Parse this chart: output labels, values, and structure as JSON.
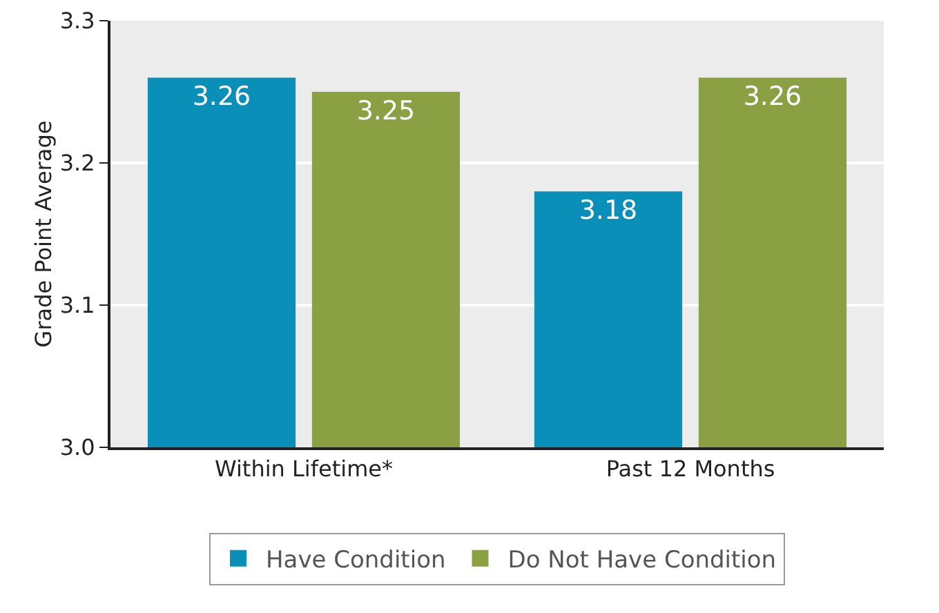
{
  "chart_data": {
    "type": "bar",
    "ylabel": "Grade Point Average",
    "categories": [
      "Within Lifetime*",
      "Past 12 Months"
    ],
    "series": [
      {
        "name": "Have Condition",
        "color": "#0a8fb8",
        "values": [
          3.26,
          3.18
        ]
      },
      {
        "name": "Do Not Have Condition",
        "color": "#8aa043",
        "values": [
          3.25,
          3.26
        ]
      }
    ],
    "ylim": [
      3.0,
      3.3
    ],
    "yticks": [
      {
        "value": 3.0,
        "label": "3.0"
      },
      3.1,
      3.2,
      {
        "value": 3.3,
        "label": "3.3"
      }
    ],
    "grid": "y",
    "legend": "bottom",
    "data_labels": true
  }
}
